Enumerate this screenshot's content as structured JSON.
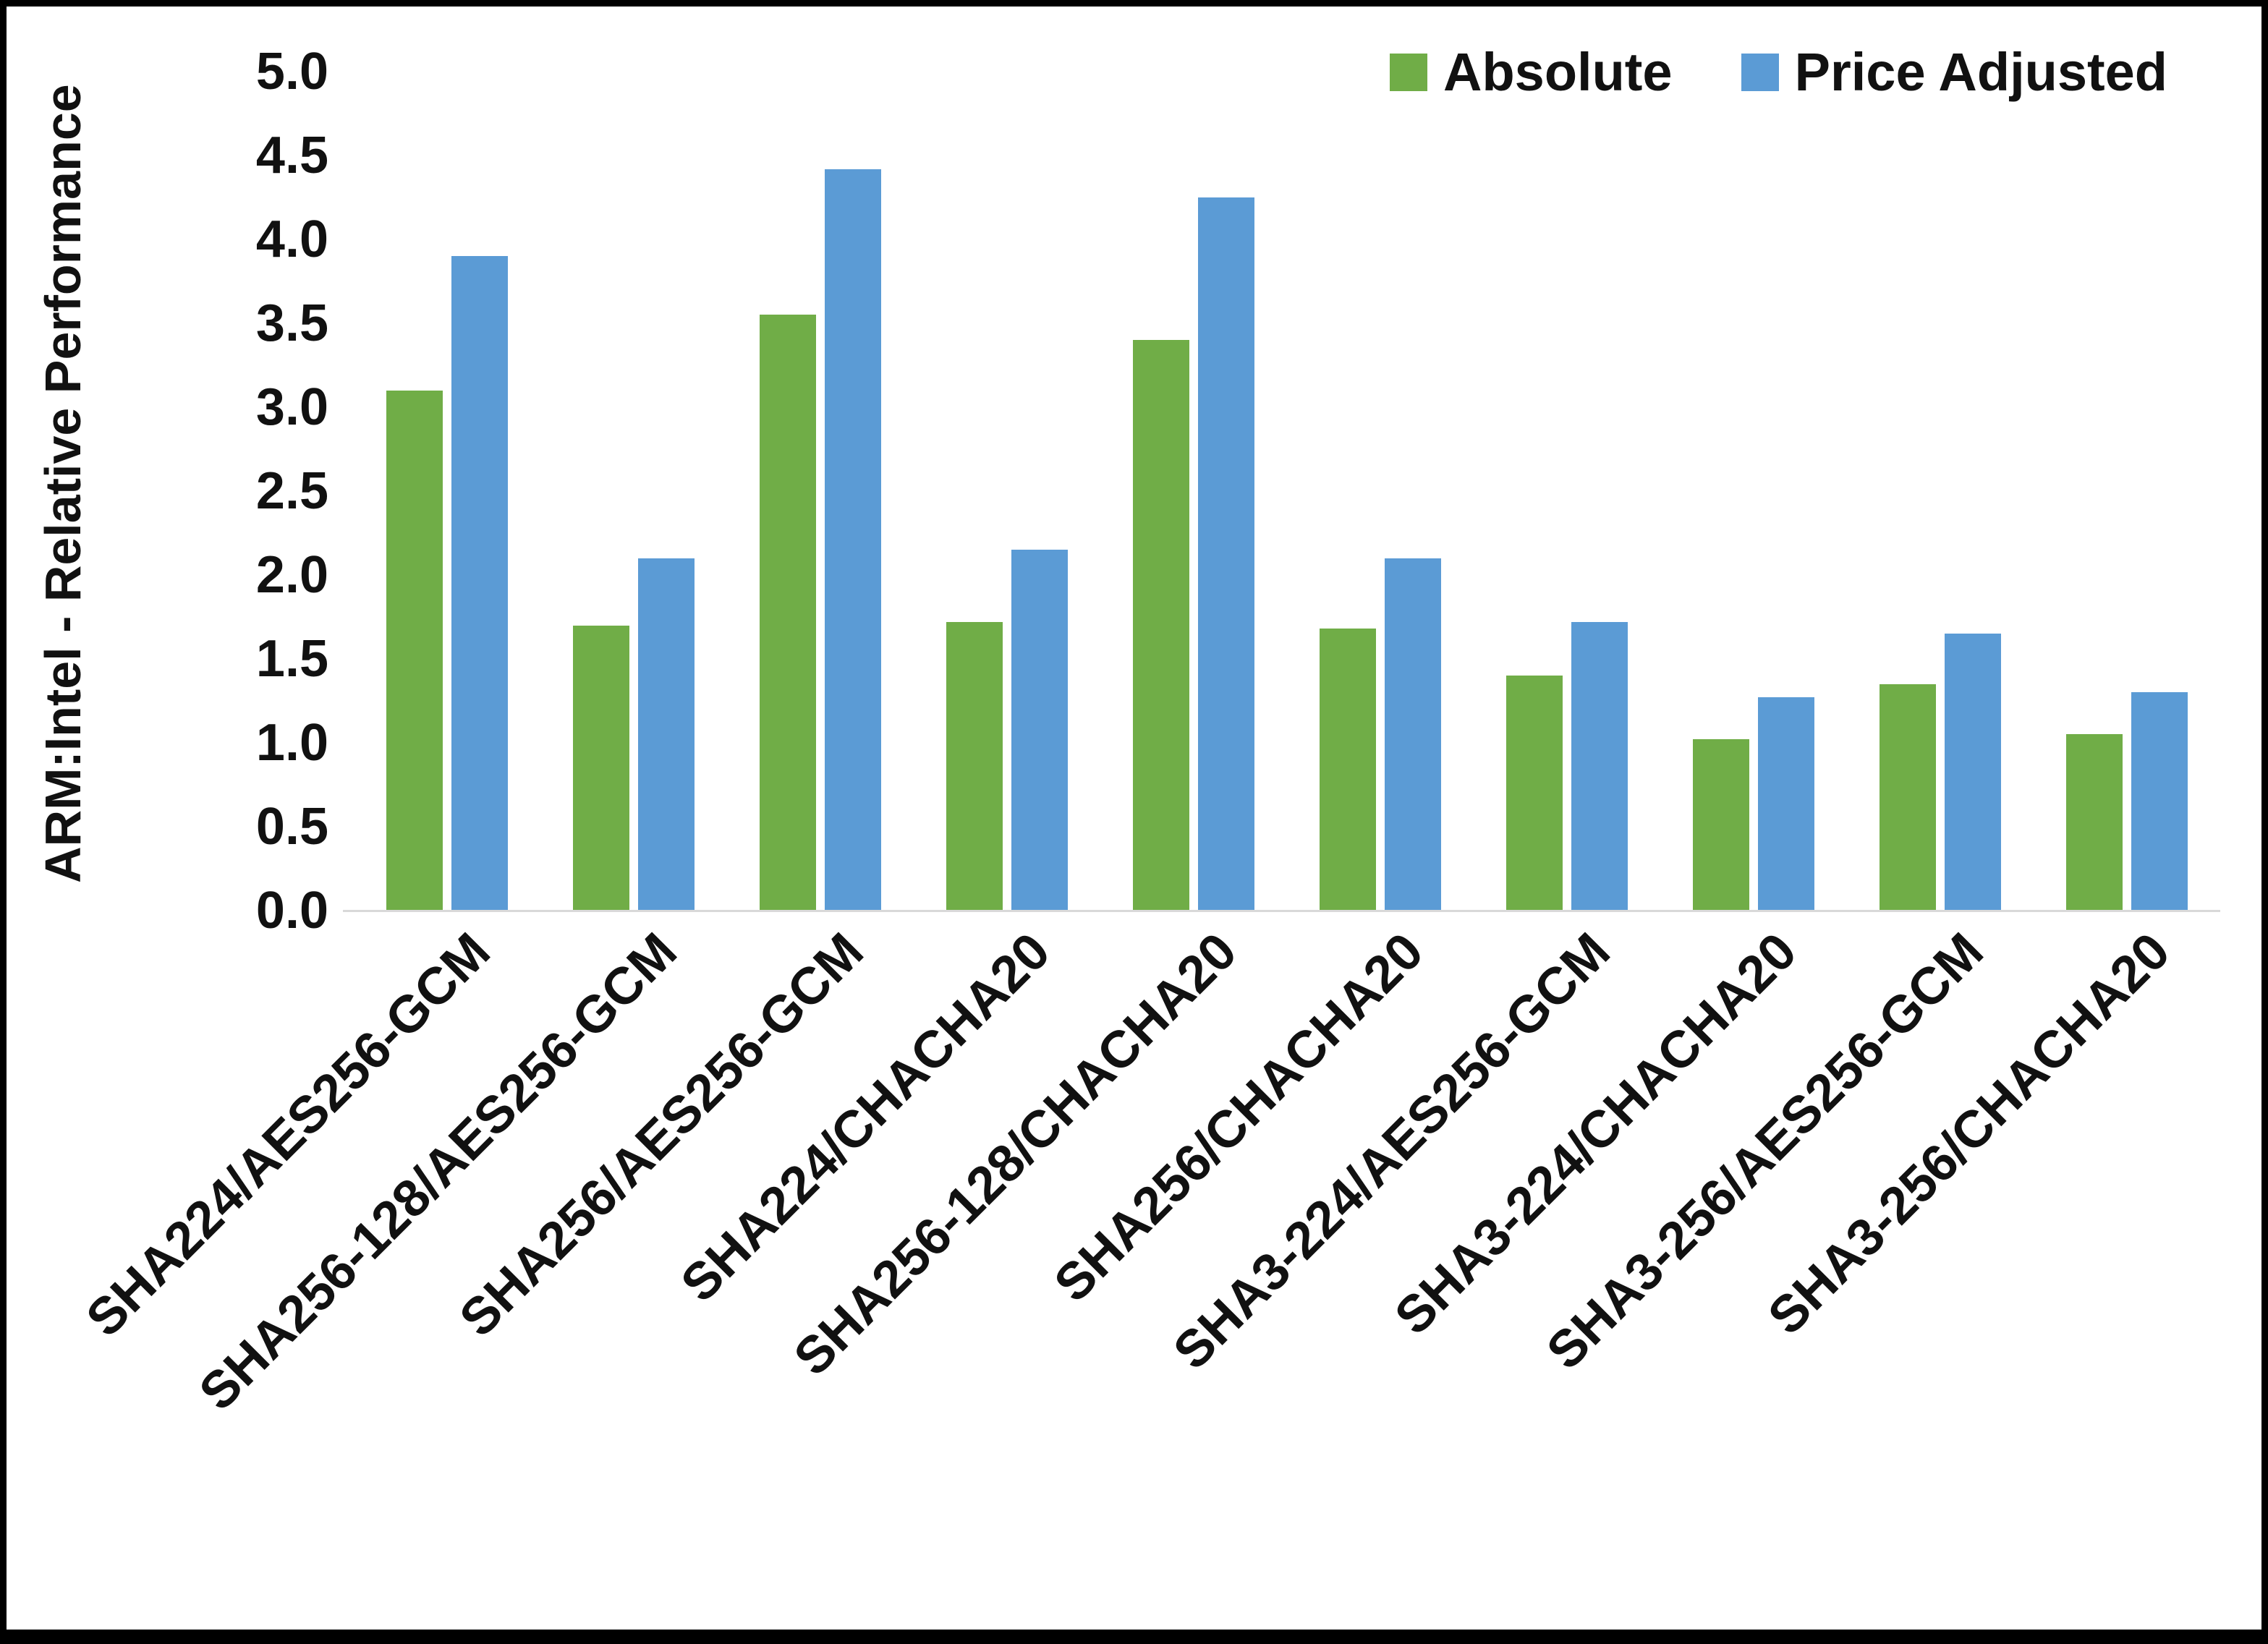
{
  "page": {
    "background_color": "#ffffff",
    "frame_border_color": "#000000"
  },
  "chart_data": {
    "type": "bar",
    "title": "",
    "xlabel": "",
    "ylabel": "ARM:Intel - Relative Performance",
    "ylim": [
      0,
      5
    ],
    "ytick_step": 0.5,
    "yticks": [
      "0.0",
      "0.5",
      "1.0",
      "1.5",
      "2.0",
      "2.5",
      "3.0",
      "3.5",
      "4.0",
      "4.5",
      "5.0"
    ],
    "grid": false,
    "legend_position": "top-right",
    "categories": [
      "SHA224/AES256-GCM",
      "SHA256-128/AES256-GCM",
      "SHA256/AES256-GCM",
      "SHA224/CHACHA20",
      "SHA256-128/CHACHA20",
      "SHA256/CHACHA20",
      "SHA3-224/AES256-GCM",
      "SHA3-224/CHACHA20",
      "SHA3-256/AES256-GCM",
      "SHA3-256/CHACHA20"
    ],
    "series": [
      {
        "name": "Absolute",
        "color": "#70AD47",
        "values": [
          3.1,
          1.7,
          3.55,
          1.72,
          3.4,
          1.68,
          1.4,
          1.02,
          1.35,
          1.05
        ]
      },
      {
        "name": "Price Adjusted",
        "color": "#5B9BD5",
        "values": [
          3.9,
          2.1,
          4.42,
          2.15,
          4.25,
          2.1,
          1.72,
          1.27,
          1.65,
          1.3
        ]
      }
    ]
  }
}
